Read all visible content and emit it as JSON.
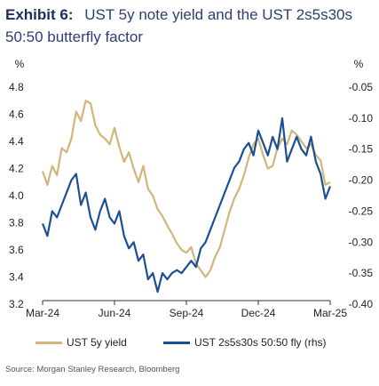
{
  "header": {
    "exhibit": "Exhibit 6:",
    "title": "UST 5y note yield and the UST 2s5s30s 50:50 butterfly factor"
  },
  "source": "Source: Morgan Stanley Research, Bloomberg",
  "chart_data": {
    "type": "line",
    "x_labels": [
      "Mar-24",
      "Jun-24",
      "Sep-24",
      "Dec-24",
      "Mar-25"
    ],
    "x_months_range": [
      0,
      12
    ],
    "left_axis": {
      "unit": "%",
      "ylim": [
        3.2,
        4.8
      ],
      "ticks": [
        "3.2",
        "3.4",
        "3.6",
        "3.8",
        "4.0",
        "4.2",
        "4.4",
        "4.6",
        "4.8"
      ]
    },
    "right_axis": {
      "unit": "%",
      "ylim": [
        -0.4,
        -0.05
      ],
      "ticks": [
        "-0.40",
        "-0.35",
        "-0.30",
        "-0.25",
        "-0.20",
        "-0.15",
        "-0.10",
        "-0.05"
      ]
    },
    "grid": false,
    "legend_position": "bottom",
    "series": [
      {
        "name": "UST 5y yield",
        "axis": "left",
        "color": "#d1b57a",
        "x": [
          0.0,
          0.2,
          0.4,
          0.6,
          0.8,
          1.0,
          1.2,
          1.4,
          1.6,
          1.8,
          2.0,
          2.2,
          2.4,
          2.6,
          2.8,
          3.0,
          3.2,
          3.4,
          3.6,
          3.8,
          4.0,
          4.2,
          4.4,
          4.6,
          4.8,
          5.0,
          5.2,
          5.4,
          5.6,
          5.8,
          6.0,
          6.2,
          6.4,
          6.6,
          6.8,
          7.0,
          7.2,
          7.4,
          7.6,
          7.8,
          8.0,
          8.2,
          8.4,
          8.6,
          8.8,
          9.0,
          9.2,
          9.4,
          9.6,
          9.8,
          10.0,
          10.2,
          10.4,
          10.6,
          10.8,
          11.0,
          11.2,
          11.4,
          11.6,
          11.8,
          12.0
        ],
        "values": [
          4.18,
          4.08,
          4.22,
          4.15,
          4.35,
          4.32,
          4.42,
          4.62,
          4.55,
          4.7,
          4.68,
          4.52,
          4.45,
          4.42,
          4.38,
          4.5,
          4.36,
          4.25,
          4.32,
          4.2,
          4.1,
          4.22,
          4.05,
          4.0,
          3.9,
          3.85,
          3.78,
          3.72,
          3.65,
          3.6,
          3.58,
          3.62,
          3.5,
          3.45,
          3.4,
          3.45,
          3.55,
          3.62,
          3.75,
          3.88,
          3.98,
          4.05,
          4.15,
          4.28,
          4.38,
          4.42,
          4.3,
          4.2,
          4.22,
          4.35,
          4.42,
          4.38,
          4.48,
          4.45,
          4.4,
          4.35,
          4.38,
          4.3,
          4.26,
          4.08,
          4.1
        ]
      },
      {
        "name": "UST 2s5s30s 50:50 fly (rhs)",
        "axis": "right",
        "color": "#1b4f93",
        "x": [
          0.0,
          0.2,
          0.4,
          0.6,
          0.8,
          1.0,
          1.2,
          1.4,
          1.6,
          1.8,
          2.0,
          2.2,
          2.4,
          2.6,
          2.8,
          3.0,
          3.2,
          3.4,
          3.6,
          3.8,
          4.0,
          4.2,
          4.4,
          4.6,
          4.8,
          5.0,
          5.2,
          5.4,
          5.6,
          5.8,
          6.0,
          6.2,
          6.4,
          6.6,
          6.8,
          7.0,
          7.2,
          7.4,
          7.6,
          7.8,
          8.0,
          8.2,
          8.4,
          8.6,
          8.8,
          9.0,
          9.2,
          9.4,
          9.6,
          9.8,
          10.0,
          10.2,
          10.4,
          10.6,
          10.8,
          11.0,
          11.2,
          11.4,
          11.6,
          11.8,
          12.0
        ],
        "values": [
          -0.27,
          -0.29,
          -0.25,
          -0.26,
          -0.24,
          -0.22,
          -0.2,
          -0.19,
          -0.24,
          -0.22,
          -0.26,
          -0.28,
          -0.25,
          -0.23,
          -0.26,
          -0.27,
          -0.25,
          -0.29,
          -0.31,
          -0.3,
          -0.33,
          -0.32,
          -0.36,
          -0.35,
          -0.38,
          -0.35,
          -0.36,
          -0.35,
          -0.345,
          -0.35,
          -0.34,
          -0.33,
          -0.34,
          -0.31,
          -0.3,
          -0.28,
          -0.26,
          -0.24,
          -0.22,
          -0.2,
          -0.18,
          -0.17,
          -0.15,
          -0.14,
          -0.16,
          -0.12,
          -0.14,
          -0.16,
          -0.13,
          -0.15,
          -0.1,
          -0.17,
          -0.15,
          -0.13,
          -0.15,
          -0.16,
          -0.13,
          -0.17,
          -0.19,
          -0.23,
          -0.21
        ]
      }
    ]
  }
}
